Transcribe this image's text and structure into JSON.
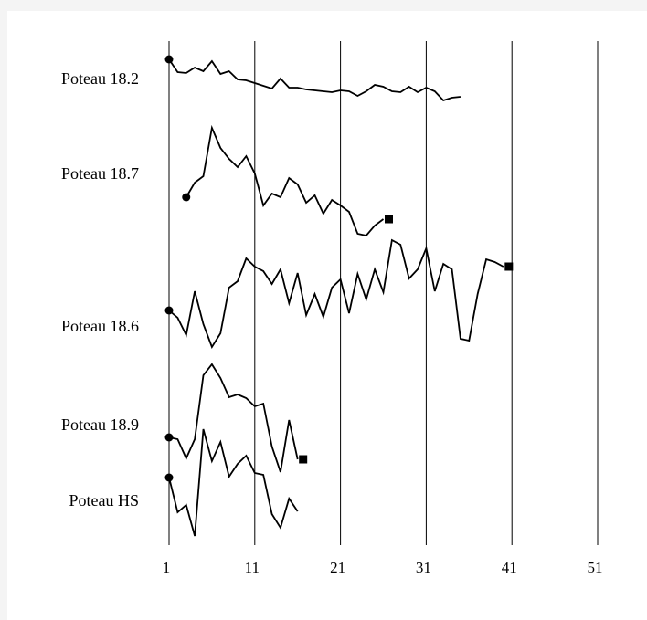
{
  "chart_data": {
    "type": "line",
    "title": "",
    "xlabel": "",
    "ylabel": "",
    "x_ticks": [
      "1",
      "11",
      "21",
      "31",
      "41",
      "51"
    ],
    "xlim": [
      1,
      51
    ],
    "grid": "vertical lines at ticks",
    "legend": "none",
    "start_marker": "circle",
    "end_marker": "square",
    "series": [
      {
        "name": "Poteau 18.2",
        "start": 1,
        "end_marker": false,
        "values": [
          65,
          79,
          80,
          74,
          78,
          67,
          81,
          78,
          87,
          88,
          91,
          94,
          97,
          86,
          96,
          96,
          98,
          99,
          100,
          101,
          99,
          100,
          105,
          100,
          93,
          95,
          100,
          101,
          95,
          101,
          96,
          100,
          110,
          107,
          106
        ]
      },
      {
        "name": "Poteau 18.7",
        "start": 3,
        "end_marker": true,
        "values": [
          216,
          200,
          193,
          140,
          162,
          174,
          183,
          171,
          190,
          225,
          212,
          216,
          195,
          202,
          222,
          214,
          234,
          219,
          225,
          232,
          256,
          258,
          247,
          240
        ]
      },
      {
        "name": "Poteau 18.6",
        "start": 1,
        "end_marker": true,
        "values": [
          340,
          348,
          367,
          319,
          355,
          380,
          365,
          315,
          308,
          283,
          292,
          297,
          311,
          295,
          332,
          299,
          345,
          322,
          347,
          315,
          306,
          343,
          300,
          328,
          295,
          320,
          263,
          268,
          305,
          295,
          272,
          319,
          289,
          295,
          371,
          373,
          322,
          284,
          287,
          292
        ]
      },
      {
        "name": "Poteau 18.9",
        "start": 1,
        "end_marker": true,
        "values": [
          479,
          481,
          502,
          481,
          411,
          399,
          414,
          435,
          432,
          436,
          445,
          442,
          489,
          517,
          460,
          503
        ]
      },
      {
        "name": "Poteau HS",
        "start": 1,
        "end_marker": false,
        "values": [
          523,
          561,
          553,
          587,
          470,
          505,
          484,
          522,
          508,
          499,
          518,
          520,
          563,
          578,
          546,
          560
        ]
      }
    ]
  }
}
